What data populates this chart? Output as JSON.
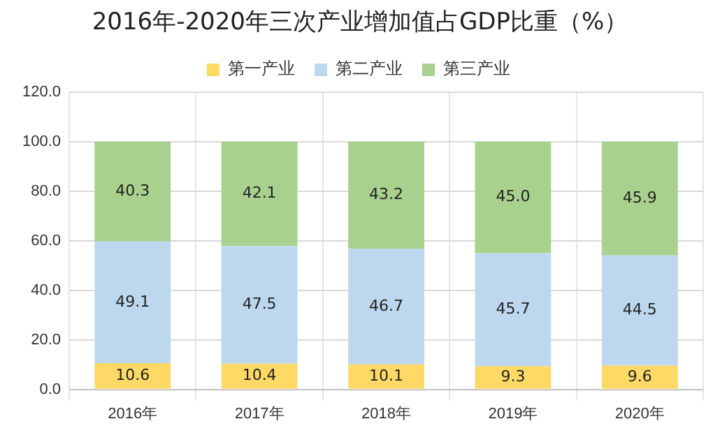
{
  "chart_data": {
    "type": "bar",
    "title": "2016年-2020年三次产业增加值占GDP比重（%）",
    "categories": [
      "2016年",
      "2017年",
      "2018年",
      "2019年",
      "2020年"
    ],
    "series": [
      {
        "name": "第一产业",
        "color": "#ffd966",
        "values": [
          10.6,
          10.4,
          10.1,
          9.3,
          9.6
        ]
      },
      {
        "name": "第二产业",
        "color": "#bdd7ee",
        "values": [
          49.1,
          47.5,
          46.7,
          45.7,
          44.5
        ]
      },
      {
        "name": "第三产业",
        "color": "#a9d18e",
        "values": [
          40.3,
          42.1,
          43.2,
          45.0,
          45.9
        ],
        "value_labels": [
          "40.3",
          "42.1",
          "43.2",
          "45.0",
          "45.9"
        ]
      }
    ],
    "stacked": true,
    "ylim": [
      0,
      120
    ],
    "yticks": [
      {
        "value": 0,
        "label": "0.0"
      },
      {
        "value": 20,
        "label": "20.0"
      },
      {
        "value": 40,
        "label": "40.0"
      },
      {
        "value": 60,
        "label": "60.0"
      },
      {
        "value": 80,
        "label": "80.0"
      },
      {
        "value": 100,
        "label": "100.0"
      },
      {
        "value": 120,
        "label": "120.0"
      }
    ],
    "grid": true,
    "legend": "top",
    "data_labels": true
  }
}
